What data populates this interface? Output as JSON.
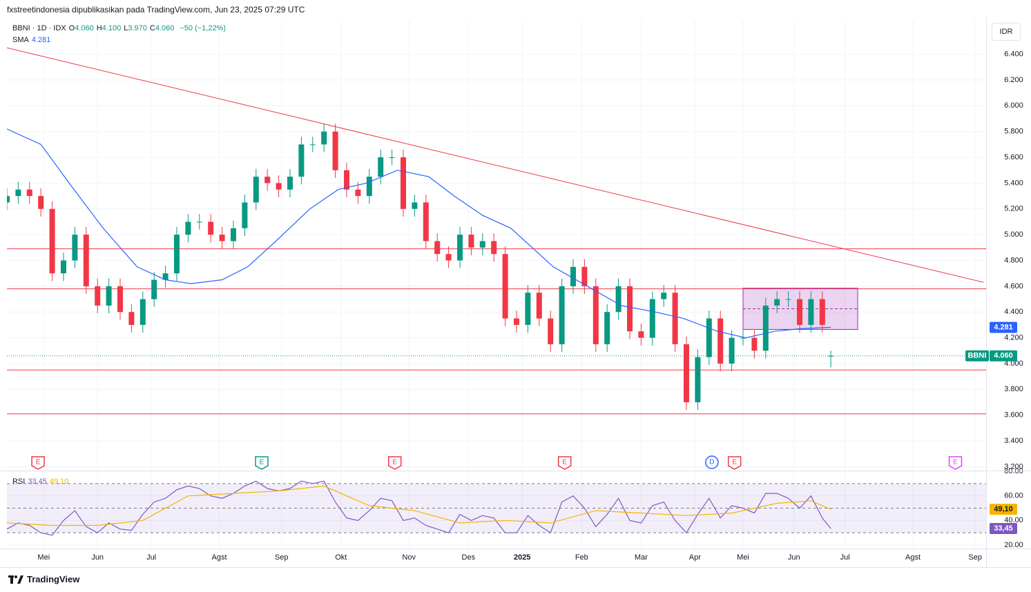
{
  "header": {
    "publisher": "fxstreetindonesia dipublikasikan pada TradingView.com, Jun 23, 2025 07:29 UTC"
  },
  "footer": {
    "brand": "TradingView"
  },
  "chart_data": [
    {
      "type": "candlestick",
      "currency": "IDR",
      "legend": {
        "symbol": "BBNI · 1D · IDX",
        "items": [
          [
            "O",
            "4.060"
          ],
          [
            "H",
            "4.100"
          ],
          [
            "L",
            "3.970"
          ],
          [
            "C",
            "4.060"
          ]
        ],
        "change": "−50 (−1,22%)"
      },
      "up_color": "#089981",
      "down_color": "#f23645",
      "x": [
        0,
        4,
        8,
        12,
        16,
        20,
        24,
        28,
        32,
        36,
        40,
        44,
        48,
        52,
        56,
        60,
        64,
        68,
        72,
        76,
        80,
        84,
        88,
        92,
        96,
        100,
        104,
        108,
        112,
        116,
        120,
        124,
        128,
        132,
        136,
        140,
        144,
        148,
        152,
        156,
        160,
        164,
        168,
        172,
        176,
        180,
        184,
        188,
        192,
        196,
        200,
        204,
        208,
        212,
        216,
        220,
        224,
        228,
        232,
        236,
        240,
        244,
        248,
        252,
        256,
        260,
        264,
        268,
        272,
        276,
        280,
        284,
        288,
        291
      ],
      "open": [
        5250,
        5300,
        5350,
        5300,
        5200,
        4700,
        4800,
        5000,
        4600,
        4450,
        4600,
        4400,
        4300,
        4500,
        4650,
        4700,
        5000,
        5100,
        5100,
        5000,
        4950,
        5050,
        5250,
        5450,
        5400,
        5350,
        5450,
        5700,
        5700,
        5800,
        5500,
        5350,
        5300,
        5450,
        5600,
        5600,
        5200,
        5250,
        4950,
        4850,
        4800,
        5000,
        4900,
        4950,
        4850,
        4350,
        4300,
        4550,
        4350,
        4150,
        4600,
        4750,
        4600,
        4150,
        4400,
        4600,
        4250,
        4200,
        4500,
        4550,
        4150,
        3700,
        4050,
        4350,
        4000,
        4200,
        4200,
        4100,
        4450,
        4500,
        4500,
        4300,
        4500,
        4060
      ],
      "high": [
        5360,
        5410,
        5410,
        5360,
        5260,
        4860,
        5060,
        5060,
        4660,
        4660,
        4660,
        4460,
        4560,
        4710,
        4760,
        5060,
        5160,
        5160,
        5160,
        5060,
        5110,
        5310,
        5510,
        5510,
        5460,
        5510,
        5760,
        5760,
        5860,
        5860,
        5560,
        5410,
        5510,
        5660,
        5660,
        5660,
        5310,
        5310,
        5010,
        4910,
        5060,
        5060,
        5010,
        5010,
        4910,
        4410,
        4610,
        4610,
        4410,
        4660,
        4810,
        4810,
        4660,
        4460,
        4660,
        4660,
        4310,
        4560,
        4610,
        4610,
        4210,
        4110,
        4410,
        4410,
        4260,
        4260,
        4260,
        4510,
        4560,
        4560,
        4560,
        4560,
        4560,
        4100
      ],
      "low": [
        5190,
        5240,
        5240,
        5140,
        4640,
        4640,
        4740,
        4540,
        4390,
        4390,
        4340,
        4240,
        4240,
        4440,
        4590,
        4640,
        4940,
        5040,
        4940,
        4890,
        4890,
        4990,
        5190,
        5340,
        5290,
        5290,
        5390,
        5640,
        5640,
        5440,
        5290,
        5240,
        5240,
        5390,
        5540,
        5140,
        5140,
        4890,
        4790,
        4740,
        4740,
        4840,
        4840,
        4790,
        4290,
        4240,
        4240,
        4290,
        4090,
        4090,
        4540,
        4540,
        4090,
        4090,
        4340,
        4190,
        4140,
        4140,
        4440,
        4090,
        3640,
        3640,
        3990,
        3940,
        3940,
        4140,
        4040,
        4040,
        4390,
        4440,
        4240,
        4240,
        4240,
        3970
      ],
      "close": [
        5300,
        5350,
        5300,
        5200,
        4700,
        4800,
        5000,
        4600,
        4450,
        4600,
        4400,
        4300,
        4500,
        4650,
        4700,
        5000,
        5100,
        5100,
        5000,
        4950,
        5050,
        5250,
        5450,
        5400,
        5350,
        5450,
        5700,
        5700,
        5800,
        5500,
        5350,
        5300,
        5450,
        5600,
        5600,
        5200,
        5250,
        4950,
        4850,
        4800,
        5000,
        4900,
        4950,
        4850,
        4350,
        4300,
        4550,
        4350,
        4150,
        4600,
        4750,
        4600,
        4150,
        4400,
        4600,
        4250,
        4200,
        4500,
        4550,
        4150,
        3700,
        4050,
        4350,
        4000,
        4200,
        4200,
        4100,
        4450,
        4500,
        4500,
        4300,
        4500,
        4300,
        4060
      ],
      "series": [
        {
          "name": "SMA",
          "color": "#2962ff",
          "x": [
            0,
            12,
            22,
            34,
            46,
            56,
            65,
            76,
            85,
            95,
            107,
            117,
            127,
            138,
            149,
            158,
            168,
            178,
            188,
            193,
            205,
            217,
            229,
            239,
            251,
            261,
            271,
            280,
            291
          ],
          "values": [
            5820,
            5700,
            5400,
            5050,
            4750,
            4650,
            4620,
            4650,
            4750,
            4950,
            5200,
            5350,
            5400,
            5500,
            5450,
            5300,
            5150,
            5050,
            4850,
            4750,
            4600,
            4450,
            4400,
            4350,
            4250,
            4200,
            4250,
            4270,
            4281
          ],
          "last_label": "4.281"
        }
      ],
      "last_price": {
        "name": "BBNI",
        "value": 4060,
        "label": "4.060",
        "color": "#089981"
      },
      "hlines": {
        "values": [
          4890,
          4580,
          3950,
          3610
        ],
        "color": "#f23645"
      },
      "trendline": {
        "x": [
          0,
          345
        ],
        "values": [
          6450,
          4630
        ],
        "color": "#f23645"
      },
      "zone": {
        "x": [
          260,
          300.5
        ],
        "values": [
          4265,
          4585
        ],
        "mid": 4425,
        "color": "#9c27b0"
      },
      "events": [
        {
          "x": 11,
          "label": "E",
          "color": "#f23645"
        },
        {
          "x": 90,
          "label": "E",
          "color": "#089981"
        },
        {
          "x": 137,
          "label": "E",
          "color": "#f23645"
        },
        {
          "x": 197,
          "label": "E",
          "color": "#f23645"
        },
        {
          "x": 249,
          "label": "D",
          "color": "#2962ff"
        },
        {
          "x": 257,
          "label": "E",
          "color": "#f23645"
        },
        {
          "x": 335,
          "label": "E",
          "color": "#e040fb"
        }
      ],
      "xlim": [
        0,
        345
      ],
      "ylim": [
        3170,
        6660
      ],
      "yticks": [
        {
          "value": 3200,
          "label": "3.200"
        },
        {
          "value": 3400,
          "label": "3.400"
        },
        {
          "value": 3600,
          "label": "3.600"
        },
        {
          "value": 3800,
          "label": "3.800"
        },
        {
          "value": 4000,
          "label": "4.000"
        },
        {
          "value": 4200,
          "label": "4.200"
        },
        {
          "value": 4400,
          "label": "4.400"
        },
        {
          "value": 4600,
          "label": "4.600"
        },
        {
          "value": 4800,
          "label": "4.800"
        },
        {
          "value": 5000,
          "label": "5.000"
        },
        {
          "value": 5200,
          "label": "5.200"
        },
        {
          "value": 5400,
          "label": "5.400"
        },
        {
          "value": 5600,
          "label": "5.600"
        },
        {
          "value": 5800,
          "label": "5.800"
        },
        {
          "value": 6000,
          "label": "6.000"
        },
        {
          "value": 6200,
          "label": "6.200"
        },
        {
          "value": 6400,
          "label": "6.400"
        }
      ],
      "grid": true
    },
    {
      "type": "line",
      "title": "RSI",
      "series": [
        {
          "color": "#7e57c2",
          "x": [
            0,
            4,
            8,
            12,
            16,
            20,
            24,
            28,
            32,
            36,
            40,
            44,
            48,
            52,
            56,
            60,
            64,
            68,
            72,
            76,
            80,
            84,
            88,
            92,
            96,
            100,
            104,
            108,
            112,
            116,
            120,
            124,
            128,
            132,
            136,
            140,
            144,
            148,
            152,
            156,
            160,
            164,
            168,
            172,
            176,
            180,
            184,
            188,
            192,
            196,
            200,
            204,
            208,
            212,
            216,
            220,
            224,
            228,
            232,
            236,
            240,
            244,
            248,
            252,
            256,
            260,
            264,
            268,
            272,
            276,
            280,
            284,
            288,
            291
          ],
          "values": [
            33,
            38,
            36,
            30,
            28,
            40,
            48,
            35,
            30,
            38,
            33,
            32,
            45,
            55,
            58,
            65,
            68,
            66,
            60,
            58,
            62,
            68,
            72,
            66,
            64,
            66,
            72,
            70,
            72,
            55,
            42,
            40,
            48,
            58,
            56,
            40,
            42,
            36,
            33,
            30,
            45,
            40,
            44,
            42,
            30,
            30,
            44,
            36,
            30,
            55,
            60,
            50,
            35,
            45,
            58,
            40,
            38,
            52,
            55,
            40,
            30,
            45,
            58,
            42,
            52,
            50,
            46,
            62,
            62,
            58,
            50,
            60,
            42,
            33.45
          ],
          "last_label": "33,45",
          "label_text": "#ffffff"
        },
        {
          "color": "#f5b400",
          "x": [
            0,
            16,
            32,
            48,
            64,
            80,
            96,
            112,
            128,
            144,
            160,
            176,
            192,
            208,
            224,
            240,
            256,
            272,
            284,
            291
          ],
          "values": [
            38,
            36,
            36,
            40,
            60,
            62,
            64,
            68,
            52,
            48,
            38,
            40,
            38,
            48,
            46,
            44,
            46,
            54,
            56,
            49.1
          ],
          "last_label": "49,10",
          "label_text": "#131722"
        }
      ],
      "bands": [
        70,
        50,
        30
      ],
      "band_color": "#7e57c2",
      "xlim": [
        0,
        345
      ],
      "ylim": [
        17.2,
        80
      ],
      "yticks": [
        {
          "value": 20,
          "label": "20.00"
        },
        {
          "value": 40,
          "label": "40.00"
        },
        {
          "value": 60,
          "label": "60.00"
        },
        {
          "value": 80,
          "label": "80.00"
        }
      ],
      "xticks": [
        {
          "value": 13,
          "label": "Mei"
        },
        {
          "value": 32,
          "label": "Jun"
        },
        {
          "value": 51,
          "label": "Jul"
        },
        {
          "value": 75,
          "label": "Agst"
        },
        {
          "value": 97,
          "label": "Sep"
        },
        {
          "value": 118,
          "label": "Okt"
        },
        {
          "value": 142,
          "label": "Nov"
        },
        {
          "value": 163,
          "label": "Des"
        },
        {
          "value": 182,
          "label": "2025"
        },
        {
          "value": 203,
          "label": "Feb"
        },
        {
          "value": 224,
          "label": "Mar"
        },
        {
          "value": 243,
          "label": "Apr"
        },
        {
          "value": 260,
          "label": "Mei"
        },
        {
          "value": 278,
          "label": "Jun"
        },
        {
          "value": 296,
          "label": "Jul"
        },
        {
          "value": 320,
          "label": "Agst"
        },
        {
          "value": 342,
          "label": "Sep"
        }
      ],
      "grid": true
    }
  ]
}
